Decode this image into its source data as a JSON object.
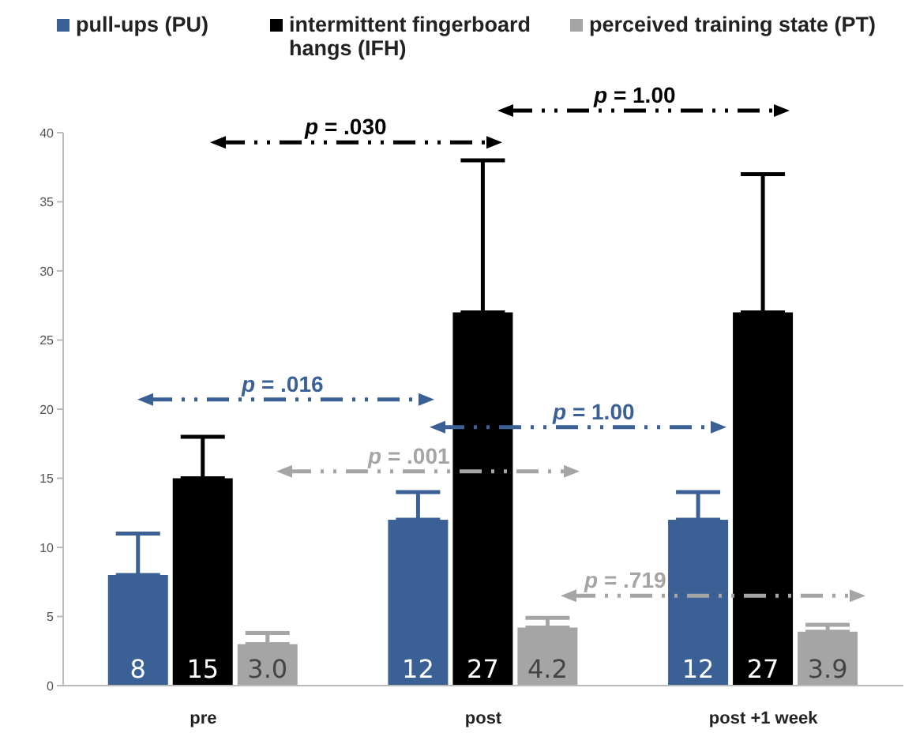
{
  "chart_data": {
    "type": "bar",
    "categories": [
      "pre",
      "post",
      "post +1 week"
    ],
    "series": [
      {
        "name": "pull-ups (PU)",
        "color": "#3a6096",
        "values": [
          8,
          12,
          12
        ],
        "errors": [
          [
            8,
            11
          ],
          [
            12,
            14
          ],
          [
            12,
            14
          ]
        ],
        "value_labels": [
          "8",
          "12",
          "12"
        ]
      },
      {
        "name": "intermittent fingerboard hangs (IFH)",
        "color": "#000000",
        "values": [
          15,
          27,
          27
        ],
        "errors": [
          [
            15,
            18
          ],
          [
            27,
            38
          ],
          [
            27,
            37
          ]
        ],
        "value_labels": [
          "15",
          "27",
          "27"
        ]
      },
      {
        "name": "perceived training state (PT)",
        "color": "#a5a5a5",
        "values": [
          3.0,
          4.2,
          3.9
        ],
        "errors": [
          [
            3.0,
            3.8
          ],
          [
            4.2,
            4.9
          ],
          [
            3.9,
            4.4
          ]
        ],
        "value_labels": [
          "3.0",
          "4.2",
          "3.9"
        ]
      }
    ],
    "ylim": [
      0,
      40
    ],
    "yticks": [
      0,
      5,
      10,
      15,
      20,
      25,
      30,
      35,
      40
    ],
    "grid": false,
    "legend": "top",
    "annotations": [
      "p = .030",
      "p = 1.00",
      "p = .016",
      "p = 1.00",
      "p = .001",
      "p = .719"
    ]
  }
}
